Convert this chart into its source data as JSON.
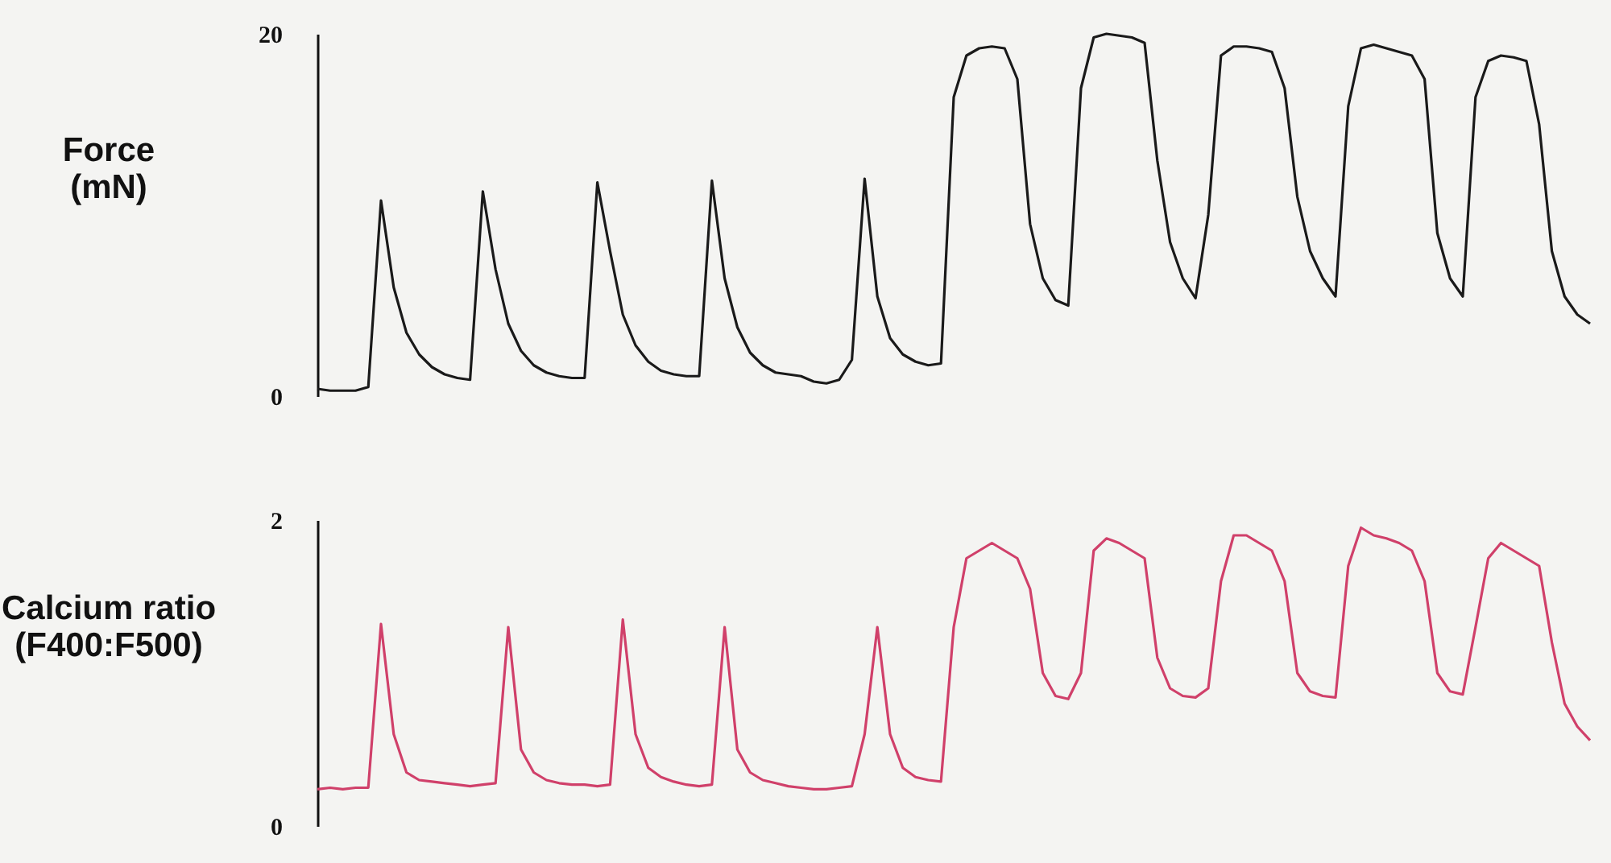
{
  "chart_data": [
    {
      "type": "line",
      "ylabel": "Force (mN)",
      "ylim": [
        0,
        20
      ],
      "yticks": [
        0,
        20
      ],
      "tick_labels": "y",
      "categories": [
        null,
        null,
        null,
        null,
        null,
        null,
        null,
        null,
        null,
        null,
        null,
        null,
        null,
        null,
        null,
        null,
        null,
        null,
        null,
        null,
        null,
        null,
        null,
        null,
        null,
        null,
        null,
        null,
        null,
        null,
        null,
        null,
        null,
        null,
        null,
        null,
        null,
        null,
        null,
        null,
        null,
        null,
        null,
        null,
        null,
        null,
        null,
        null,
        null,
        null,
        null,
        null,
        null,
        null,
        null,
        null,
        null,
        null,
        null,
        null,
        null,
        null,
        null,
        null,
        null,
        null,
        null,
        null,
        null,
        null,
        null,
        null,
        null,
        null,
        null,
        null,
        null,
        null,
        null,
        null,
        null,
        null,
        null,
        null,
        null,
        null,
        null,
        null,
        null,
        null,
        null,
        null,
        null,
        null,
        null,
        null,
        null,
        null,
        null,
        null,
        null
      ],
      "series": [
        {
          "color": "#1a1a1a",
          "values": [
            0.4,
            0.3,
            0.3,
            0.3,
            0.5,
            10.8,
            6,
            3.5,
            2.3,
            1.6,
            1.2,
            1.0,
            0.9,
            11.3,
            7,
            4,
            2.5,
            1.7,
            1.3,
            1.1,
            1.0,
            1.0,
            11.8,
            8,
            4.5,
            2.8,
            1.9,
            1.4,
            1.2,
            1.1,
            1.1,
            11.9,
            6.5,
            3.8,
            2.4,
            1.7,
            1.3,
            1.2,
            1.1,
            0.8,
            0.7,
            0.9,
            2.0,
            12.0,
            5.5,
            3.2,
            2.3,
            1.9,
            1.7,
            1.8,
            16.5,
            18.8,
            19.2,
            19.3,
            19.2,
            17.5,
            9.5,
            6.5,
            5.3,
            5.0,
            17,
            19.8,
            20.0,
            19.9,
            19.8,
            19.5,
            13,
            8.5,
            6.5,
            5.4,
            10,
            18.8,
            19.3,
            19.3,
            19.2,
            19.0,
            17,
            11,
            8,
            6.5,
            5.5,
            16,
            19.2,
            19.4,
            19.2,
            19.0,
            18.8,
            17.5,
            9,
            6.5,
            5.5,
            16.5,
            18.5,
            18.8,
            18.7,
            18.5,
            15,
            8,
            5.5,
            4.5,
            4.0
          ]
        }
      ]
    },
    {
      "type": "line",
      "ylabel": "Calcium ratio (F400:F500)",
      "ylim": [
        0,
        2
      ],
      "yticks": [
        0,
        2
      ],
      "tick_labels": "y",
      "categories": [
        null,
        null,
        null,
        null,
        null,
        null,
        null,
        null,
        null,
        null,
        null,
        null,
        null,
        null,
        null,
        null,
        null,
        null,
        null,
        null,
        null,
        null,
        null,
        null,
        null,
        null,
        null,
        null,
        null,
        null,
        null,
        null,
        null,
        null,
        null,
        null,
        null,
        null,
        null,
        null,
        null,
        null,
        null,
        null,
        null,
        null,
        null,
        null,
        null,
        null,
        null,
        null,
        null,
        null,
        null,
        null,
        null,
        null,
        null,
        null,
        null,
        null,
        null,
        null,
        null,
        null,
        null,
        null,
        null,
        null,
        null,
        null,
        null,
        null,
        null,
        null,
        null,
        null,
        null,
        null,
        null,
        null,
        null,
        null,
        null,
        null,
        null,
        null,
        null,
        null,
        null,
        null,
        null,
        null,
        null,
        null,
        null,
        null,
        null,
        null,
        null
      ],
      "series": [
        {
          "color": "#d0406a",
          "values": [
            0.24,
            0.25,
            0.24,
            0.25,
            0.25,
            1.32,
            0.6,
            0.35,
            0.3,
            0.29,
            0.28,
            0.27,
            0.26,
            0.27,
            0.28,
            1.3,
            0.5,
            0.35,
            0.3,
            0.28,
            0.27,
            0.27,
            0.26,
            0.27,
            1.35,
            0.6,
            0.38,
            0.32,
            0.29,
            0.27,
            0.26,
            0.27,
            1.3,
            0.5,
            0.35,
            0.3,
            0.28,
            0.26,
            0.25,
            0.24,
            0.24,
            0.25,
            0.26,
            0.6,
            1.3,
            0.6,
            0.38,
            0.32,
            0.3,
            0.29,
            1.3,
            1.75,
            1.8,
            1.85,
            1.8,
            1.75,
            1.55,
            1.0,
            0.85,
            0.83,
            1.0,
            1.8,
            1.88,
            1.85,
            1.8,
            1.75,
            1.1,
            0.9,
            0.85,
            0.84,
            0.9,
            1.6,
            1.9,
            1.9,
            1.85,
            1.8,
            1.6,
            1.0,
            0.88,
            0.85,
            0.84,
            1.7,
            1.95,
            1.9,
            1.88,
            1.85,
            1.8,
            1.6,
            1.0,
            0.88,
            0.86,
            1.3,
            1.75,
            1.85,
            1.8,
            1.75,
            1.7,
            1.2,
            0.8,
            0.65,
            0.56
          ]
        }
      ]
    }
  ]
}
